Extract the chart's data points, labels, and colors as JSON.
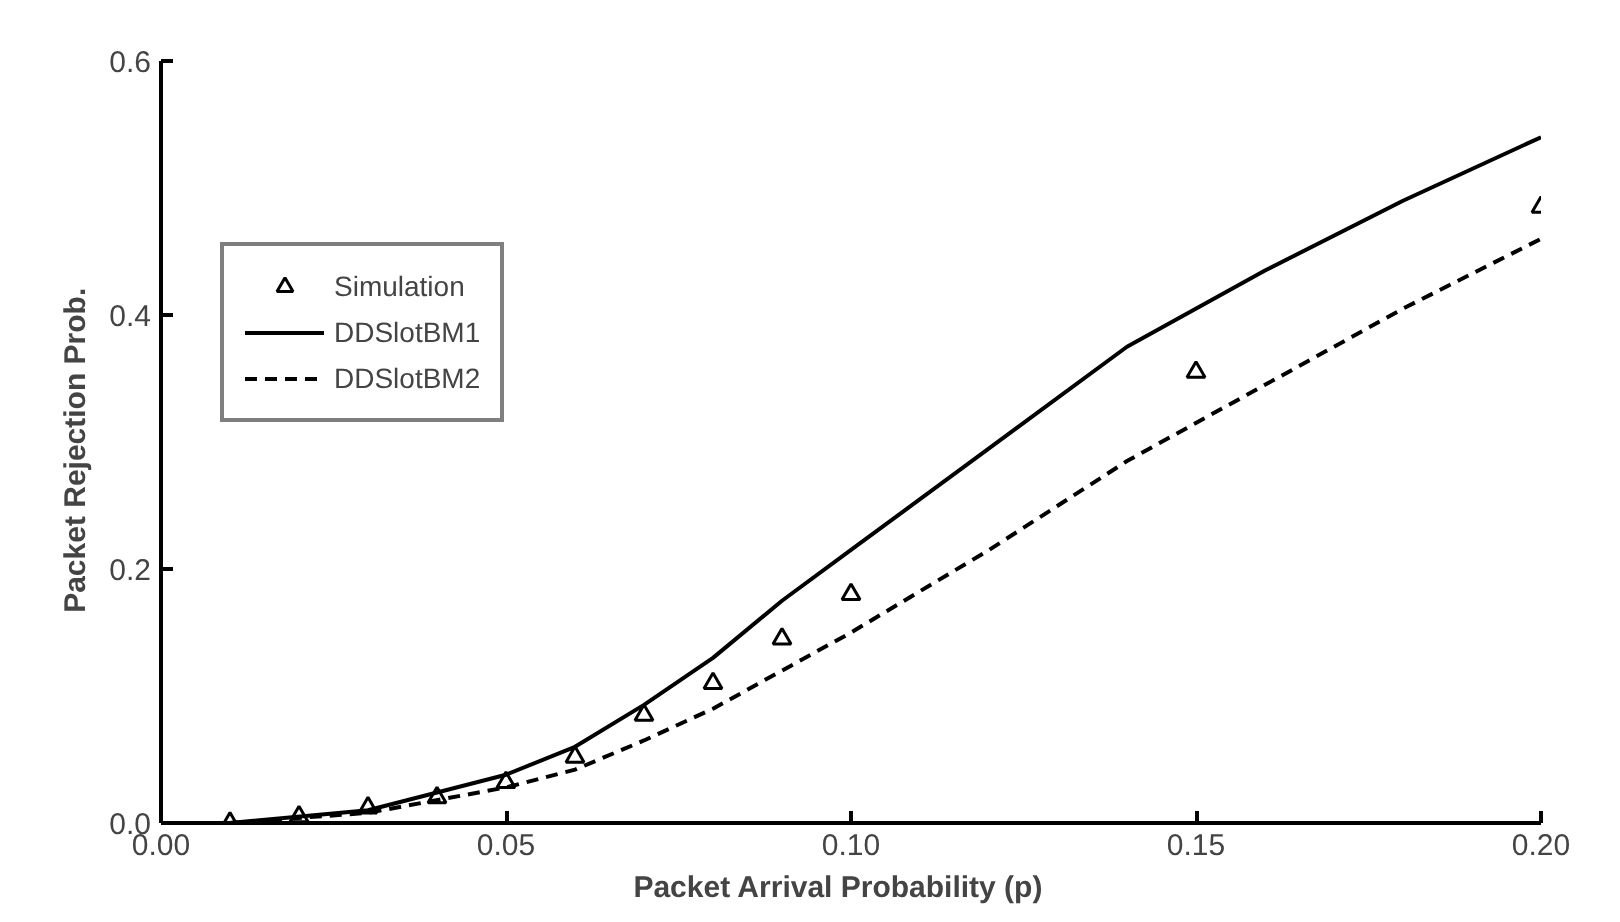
{
  "chart_data": {
    "type": "line",
    "xlabel": "Packet  Arrival  Probability  (p)",
    "ylabel": "Packet  Rejection  Prob.",
    "xlim": [
      0,
      0.2
    ],
    "xticks": [
      {
        "value": 0,
        "label": "0.00"
      },
      {
        "value": 0.05,
        "label": "0.05"
      },
      {
        "value": 0.1,
        "label": "0.10"
      },
      {
        "value": 0.15,
        "label": "0.15"
      },
      {
        "value": 0.2,
        "label": "0.20"
      }
    ],
    "ylim": [
      0,
      0.6
    ],
    "yticks": [
      {
        "value": 0,
        "label": "0.0"
      },
      {
        "value": 0.2,
        "label": "0.2"
      },
      {
        "value": 0.4,
        "label": "0.4"
      },
      {
        "value": 0.6,
        "label": "0.6"
      }
    ],
    "legend": "top left",
    "series": [
      {
        "name": "Simulation",
        "type": "scatter",
        "marker": "triangle",
        "color": "#000000",
        "x": [
          0.01,
          0.02,
          0.03,
          0.04,
          0.05,
          0.06,
          0.07,
          0.08,
          0.09,
          0.1,
          0.15,
          0.2
        ],
        "values": [
          0.0,
          0.005,
          0.012,
          0.02,
          0.032,
          0.052,
          0.085,
          0.11,
          0.145,
          0.18,
          0.355,
          0.485
        ]
      },
      {
        "name": "DDSlotBM1",
        "line_style": "solid",
        "color": "#000000",
        "x": [
          0.01,
          0.03,
          0.05,
          0.06,
          0.07,
          0.08,
          0.09,
          0.1,
          0.12,
          0.14,
          0.16,
          0.18,
          0.2
        ],
        "values": [
          0.0,
          0.01,
          0.038,
          0.06,
          0.093,
          0.13,
          0.175,
          0.215,
          0.295,
          0.375,
          0.435,
          0.49,
          0.54
        ]
      },
      {
        "name": "DDSlotBM2",
        "line_style": "dashed",
        "color": "#000000",
        "x": [
          0.01,
          0.03,
          0.05,
          0.06,
          0.07,
          0.08,
          0.09,
          0.1,
          0.12,
          0.14,
          0.16,
          0.18,
          0.2
        ],
        "values": [
          0.0,
          0.008,
          0.028,
          0.042,
          0.065,
          0.09,
          0.12,
          0.15,
          0.215,
          0.285,
          0.345,
          0.405,
          0.46
        ]
      }
    ]
  }
}
